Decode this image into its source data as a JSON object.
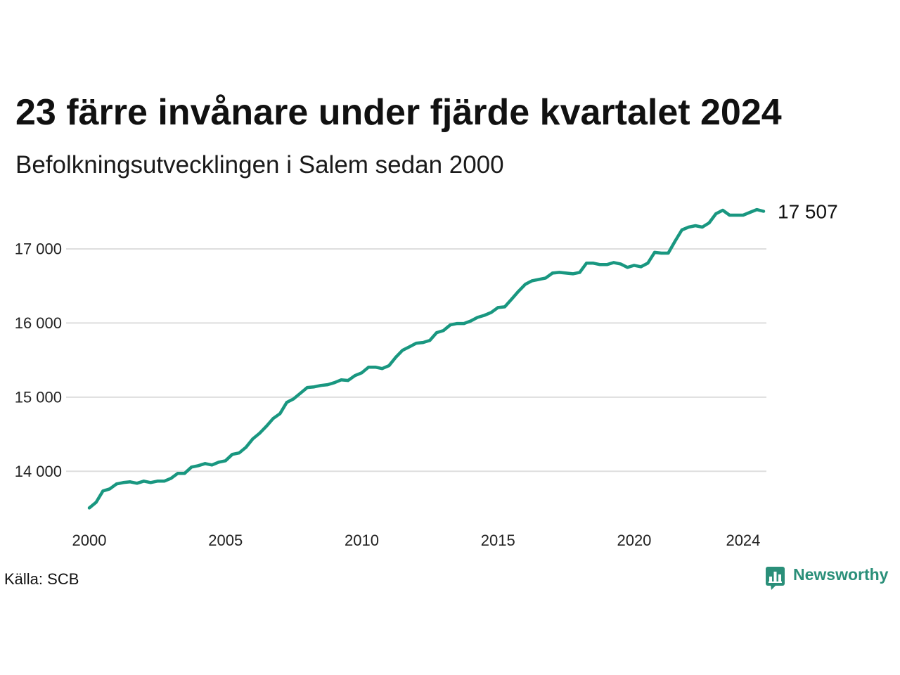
{
  "source": "Källa: SCB",
  "logo": {
    "text": "Newsworthy",
    "icon": "newsworthy-logo-icon"
  },
  "colors": {
    "line": "#199780",
    "grid": "#dedede",
    "logo": "#2a8f79",
    "text": "#111111"
  },
  "chart_data": {
    "type": "line",
    "title": "23 färre invånare under fjärde kvartalet 2024",
    "subtitle": "Befolkningsutvecklingen i Salem sedan 2000",
    "xlabel": "",
    "ylabel": "",
    "x": [
      "2000-01-01",
      "2000-04-01",
      "2000-07-01",
      "2000-10-01",
      "2001-01-01",
      "2001-04-01",
      "2001-07-01",
      "2001-10-01",
      "2002-01-01",
      "2002-04-01",
      "2002-07-01",
      "2002-10-01",
      "2003-01-01",
      "2003-04-01",
      "2003-07-01",
      "2003-10-01",
      "2004-01-01",
      "2004-04-01",
      "2004-07-01",
      "2004-10-01",
      "2005-01-01",
      "2005-04-01",
      "2005-07-01",
      "2005-10-01",
      "2006-01-01",
      "2006-04-01",
      "2006-07-01",
      "2006-10-01",
      "2007-01-01",
      "2007-04-01",
      "2007-07-01",
      "2007-10-01",
      "2008-01-01",
      "2008-04-01",
      "2008-07-01",
      "2008-10-01",
      "2009-01-01",
      "2009-04-01",
      "2009-07-01",
      "2009-10-01",
      "2010-01-01",
      "2010-04-01",
      "2010-07-01",
      "2010-10-01",
      "2011-01-01",
      "2011-04-01",
      "2011-07-01",
      "2011-10-01",
      "2012-01-01",
      "2012-04-01",
      "2012-07-01",
      "2012-10-01",
      "2013-01-01",
      "2013-04-01",
      "2013-07-01",
      "2013-10-01",
      "2014-01-01",
      "2014-04-01",
      "2014-07-01",
      "2014-10-01",
      "2015-01-01",
      "2015-04-01",
      "2015-07-01",
      "2015-10-01",
      "2016-01-01",
      "2016-04-01",
      "2016-07-01",
      "2016-10-01",
      "2017-01-01",
      "2017-04-01",
      "2017-07-01",
      "2017-10-01",
      "2018-01-01",
      "2018-04-01",
      "2018-07-01",
      "2018-10-01",
      "2019-01-01",
      "2019-04-01",
      "2019-07-01",
      "2019-10-01",
      "2020-01-01",
      "2020-04-01",
      "2020-07-01",
      "2020-10-01",
      "2021-01-01",
      "2021-04-01",
      "2021-07-01",
      "2021-10-01",
      "2022-01-01",
      "2022-04-01",
      "2022-07-01",
      "2022-10-01",
      "2023-01-01",
      "2023-04-01",
      "2023-07-01",
      "2023-10-01",
      "2024-01-01",
      "2024-04-01",
      "2024-07-01",
      "2024-10-01"
    ],
    "series": [
      {
        "values": [
          13506,
          13582,
          13734,
          13763,
          13829,
          13848,
          13858,
          13839,
          13867,
          13848,
          13867,
          13867,
          13905,
          13972,
          13972,
          14057,
          14076,
          14104,
          14085,
          14123,
          14142,
          14228,
          14247,
          14323,
          14437,
          14513,
          14608,
          14712,
          14778,
          14930,
          14978,
          15054,
          15130,
          15139,
          15158,
          15168,
          15196,
          15234,
          15225,
          15291,
          15329,
          15405,
          15405,
          15386,
          15424,
          15538,
          15633,
          15680,
          15728,
          15737,
          15766,
          15870,
          15899,
          15975,
          15994,
          15994,
          16028,
          16076,
          16104,
          16142,
          16209,
          16218,
          16322,
          16427,
          16522,
          16569,
          16588,
          16607,
          16674,
          16683,
          16674,
          16664,
          16683,
          16807,
          16807,
          16788,
          16788,
          16816,
          16797,
          16750,
          16778,
          16759,
          16807,
          16953,
          16943,
          16943,
          17104,
          17256,
          17294,
          17313,
          17294,
          17351,
          17474,
          17522,
          17455,
          17455,
          17455,
          17493,
          17530,
          17507
        ]
      }
    ],
    "end_label": "17 507",
    "x_ticks": [
      "2000",
      "2005",
      "2010",
      "2015",
      "2020",
      "2024"
    ],
    "y_ticks": [
      "14 000",
      "15 000",
      "16 000",
      "17 000"
    ],
    "xlim": [
      "2000-01-01",
      "2024-10-01"
    ],
    "ylim": [
      13500,
      17550
    ],
    "grid": "horizontal",
    "legend": "none"
  }
}
